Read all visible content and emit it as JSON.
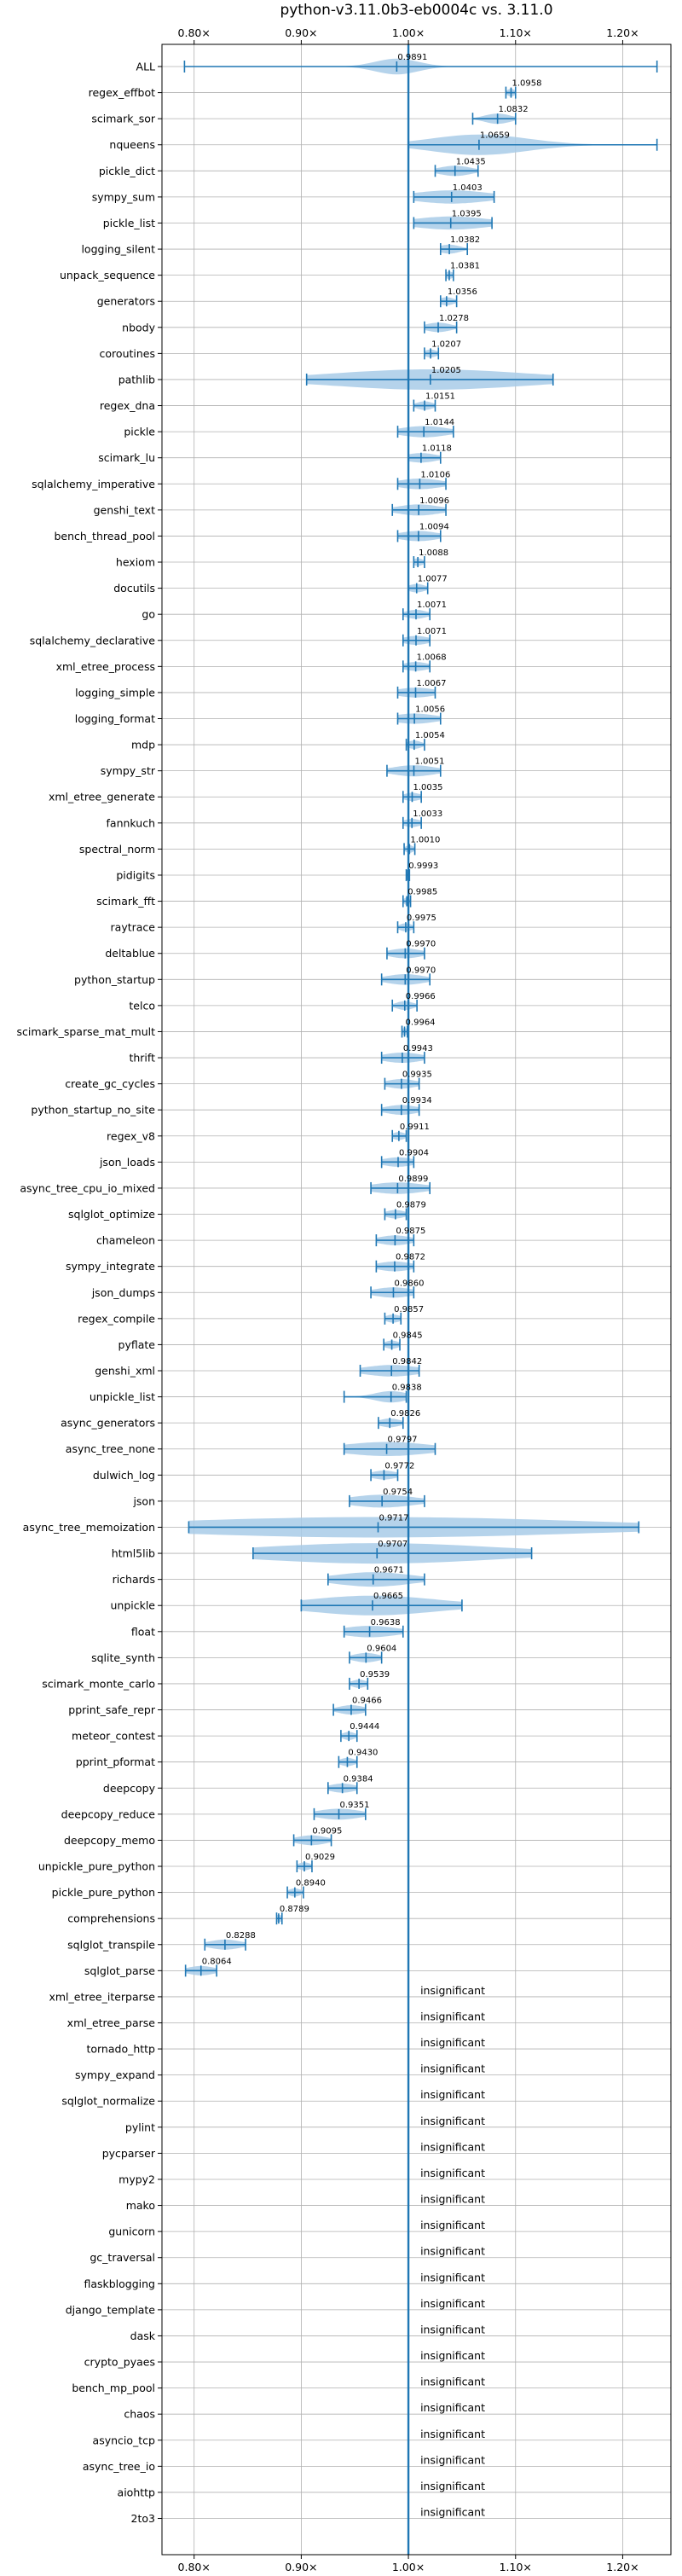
{
  "chart_data": {
    "type": "violin",
    "title": "python-v3.11.0b3-eb0004c vs. 3.11.0",
    "x_ticks": [
      {
        "value": 0.8,
        "label": "0.80×"
      },
      {
        "value": 0.9,
        "label": "0.90×"
      },
      {
        "value": 1.0,
        "label": "1.00×"
      },
      {
        "value": 1.1,
        "label": "1.10×"
      },
      {
        "value": 1.2,
        "label": "1.20×"
      }
    ],
    "xlim": [
      0.77,
      1.245
    ],
    "baseline": 1.0,
    "grid": true,
    "colors": {
      "violin": "#a8cbe8",
      "line": "#1f77b4",
      "grid": "#b0b0b0",
      "axis": "#000000"
    },
    "insignificant_label": "insignificant",
    "benchmarks": [
      {
        "name": "ALL",
        "mean": 0.9891,
        "min": 0.791,
        "max": 1.232,
        "spread": 0.02,
        "label": "0.9891"
      },
      {
        "name": "regex_effbot",
        "mean": 1.0958,
        "min": 1.091,
        "max": 1.1,
        "spread": 0.004,
        "label": "1.0958"
      },
      {
        "name": "scimark_sor",
        "mean": 1.0832,
        "min": 1.06,
        "max": 1.1,
        "spread": 0.012,
        "label": "1.0832"
      },
      {
        "name": "nqueens",
        "mean": 1.0659,
        "min": 1.0,
        "max": 1.232,
        "spread": 0.045,
        "label": "1.0659"
      },
      {
        "name": "pickle_dict",
        "mean": 1.0435,
        "min": 1.025,
        "max": 1.065,
        "spread": 0.015,
        "label": "1.0435"
      },
      {
        "name": "sympy_sum",
        "mean": 1.0403,
        "min": 1.005,
        "max": 1.08,
        "spread": 0.035,
        "label": "1.0403"
      },
      {
        "name": "pickle_list",
        "mean": 1.0395,
        "min": 1.005,
        "max": 1.078,
        "spread": 0.035,
        "label": "1.0395"
      },
      {
        "name": "logging_silent",
        "mean": 1.0382,
        "min": 1.03,
        "max": 1.055,
        "spread": 0.01,
        "label": "1.0382"
      },
      {
        "name": "unpack_sequence",
        "mean": 1.0381,
        "min": 1.035,
        "max": 1.042,
        "spread": 0.004,
        "label": "1.0381"
      },
      {
        "name": "generators",
        "mean": 1.0356,
        "min": 1.03,
        "max": 1.045,
        "spread": 0.007,
        "label": "1.0356"
      },
      {
        "name": "nbody",
        "mean": 1.0278,
        "min": 1.015,
        "max": 1.045,
        "spread": 0.012,
        "label": "1.0278"
      },
      {
        "name": "coroutines",
        "mean": 1.0207,
        "min": 1.015,
        "max": 1.028,
        "spread": 0.006,
        "label": "1.0207"
      },
      {
        "name": "pathlib",
        "mean": 1.0205,
        "min": 0.905,
        "max": 1.135,
        "spread": 0.09,
        "label": "1.0205"
      },
      {
        "name": "regex_dna",
        "mean": 1.0151,
        "min": 1.005,
        "max": 1.025,
        "spread": 0.008,
        "label": "1.0151"
      },
      {
        "name": "pickle",
        "mean": 1.0144,
        "min": 0.99,
        "max": 1.042,
        "spread": 0.022,
        "label": "1.0144"
      },
      {
        "name": "scimark_lu",
        "mean": 1.0118,
        "min": 1.0,
        "max": 1.03,
        "spread": 0.015,
        "label": "1.0118"
      },
      {
        "name": "sqlalchemy_imperative",
        "mean": 1.0106,
        "min": 0.99,
        "max": 1.035,
        "spread": 0.02,
        "label": "1.0106"
      },
      {
        "name": "genshi_text",
        "mean": 1.0096,
        "min": 0.985,
        "max": 1.035,
        "spread": 0.02,
        "label": "1.0096"
      },
      {
        "name": "bench_thread_pool",
        "mean": 1.0094,
        "min": 0.99,
        "max": 1.03,
        "spread": 0.018,
        "label": "1.0094"
      },
      {
        "name": "hexiom",
        "mean": 1.0088,
        "min": 1.005,
        "max": 1.015,
        "spread": 0.005,
        "label": "1.0088"
      },
      {
        "name": "docutils",
        "mean": 1.0077,
        "min": 1.0,
        "max": 1.018,
        "spread": 0.008,
        "label": "1.0077"
      },
      {
        "name": "go",
        "mean": 1.0071,
        "min": 0.995,
        "max": 1.02,
        "spread": 0.01,
        "label": "1.0071"
      },
      {
        "name": "sqlalchemy_declarative",
        "mean": 1.0071,
        "min": 0.995,
        "max": 1.02,
        "spread": 0.012,
        "label": "1.0071"
      },
      {
        "name": "xml_etree_process",
        "mean": 1.0068,
        "min": 0.995,
        "max": 1.02,
        "spread": 0.012,
        "label": "1.0068"
      },
      {
        "name": "logging_simple",
        "mean": 1.0067,
        "min": 0.99,
        "max": 1.025,
        "spread": 0.018,
        "label": "1.0067"
      },
      {
        "name": "logging_format",
        "mean": 1.0056,
        "min": 0.99,
        "max": 1.03,
        "spread": 0.02,
        "label": "1.0056"
      },
      {
        "name": "mdp",
        "mean": 1.0054,
        "min": 0.998,
        "max": 1.015,
        "spread": 0.007,
        "label": "1.0054"
      },
      {
        "name": "sympy_str",
        "mean": 1.0051,
        "min": 0.98,
        "max": 1.03,
        "spread": 0.02,
        "label": "1.0051"
      },
      {
        "name": "xml_etree_generate",
        "mean": 1.0035,
        "min": 0.995,
        "max": 1.012,
        "spread": 0.008,
        "label": "1.0035"
      },
      {
        "name": "fannkuch",
        "mean": 1.0033,
        "min": 0.995,
        "max": 1.012,
        "spread": 0.008,
        "label": "1.0033"
      },
      {
        "name": "spectral_norm",
        "mean": 1.001,
        "min": 0.996,
        "max": 1.006,
        "spread": 0.004,
        "label": "1.0010"
      },
      {
        "name": "pidigits",
        "mean": 0.9993,
        "min": 0.998,
        "max": 1.001,
        "spread": 0.002,
        "label": "0.9993"
      },
      {
        "name": "scimark_fft",
        "mean": 0.9985,
        "min": 0.995,
        "max": 1.002,
        "spread": 0.003,
        "label": "0.9985"
      },
      {
        "name": "raytrace",
        "mean": 0.9975,
        "min": 0.99,
        "max": 1.005,
        "spread": 0.006,
        "label": "0.9975"
      },
      {
        "name": "deltablue",
        "mean": 0.997,
        "min": 0.98,
        "max": 1.015,
        "spread": 0.015,
        "label": "0.9970"
      },
      {
        "name": "python_startup",
        "mean": 0.997,
        "min": 0.975,
        "max": 1.02,
        "spread": 0.018,
        "label": "0.9970"
      },
      {
        "name": "telco",
        "mean": 0.9966,
        "min": 0.985,
        "max": 1.008,
        "spread": 0.008,
        "label": "0.9966"
      },
      {
        "name": "scimark_sparse_mat_mult",
        "mean": 0.9964,
        "min": 0.994,
        "max": 0.999,
        "spread": 0.003,
        "label": "0.9964"
      },
      {
        "name": "thrift",
        "mean": 0.9943,
        "min": 0.975,
        "max": 1.015,
        "spread": 0.018,
        "label": "0.9943"
      },
      {
        "name": "create_gc_cycles",
        "mean": 0.9935,
        "min": 0.978,
        "max": 1.01,
        "spread": 0.014,
        "label": "0.9935"
      },
      {
        "name": "python_startup_no_site",
        "mean": 0.9934,
        "min": 0.975,
        "max": 1.01,
        "spread": 0.015,
        "label": "0.9934"
      },
      {
        "name": "regex_v8",
        "mean": 0.9911,
        "min": 0.985,
        "max": 0.998,
        "spread": 0.006,
        "label": "0.9911"
      },
      {
        "name": "json_loads",
        "mean": 0.9904,
        "min": 0.975,
        "max": 1.005,
        "spread": 0.015,
        "label": "0.9904"
      },
      {
        "name": "async_tree_cpu_io_mixed",
        "mean": 0.9899,
        "min": 0.965,
        "max": 1.02,
        "spread": 0.025,
        "label": "0.9899"
      },
      {
        "name": "sqlglot_optimize",
        "mean": 0.9879,
        "min": 0.978,
        "max": 0.998,
        "spread": 0.009,
        "label": "0.9879"
      },
      {
        "name": "chameleon",
        "mean": 0.9875,
        "min": 0.97,
        "max": 1.005,
        "spread": 0.015,
        "label": "0.9875"
      },
      {
        "name": "sympy_integrate",
        "mean": 0.9872,
        "min": 0.97,
        "max": 1.005,
        "spread": 0.016,
        "label": "0.9872"
      },
      {
        "name": "json_dumps",
        "mean": 0.986,
        "min": 0.965,
        "max": 1.005,
        "spread": 0.018,
        "label": "0.9860"
      },
      {
        "name": "regex_compile",
        "mean": 0.9857,
        "min": 0.978,
        "max": 0.993,
        "spread": 0.007,
        "label": "0.9857"
      },
      {
        "name": "pyflate",
        "mean": 0.9845,
        "min": 0.977,
        "max": 0.992,
        "spread": 0.007,
        "label": "0.9845"
      },
      {
        "name": "genshi_xml",
        "mean": 0.9842,
        "min": 0.955,
        "max": 1.01,
        "spread": 0.025,
        "label": "0.9842"
      },
      {
        "name": "unpickle_list",
        "mean": 0.9838,
        "min": 0.94,
        "max": 0.998,
        "spread": 0.015,
        "label": "0.9838"
      },
      {
        "name": "async_generators",
        "mean": 0.9826,
        "min": 0.972,
        "max": 0.995,
        "spread": 0.01,
        "label": "0.9826"
      },
      {
        "name": "async_tree_none",
        "mean": 0.9797,
        "min": 0.94,
        "max": 1.025,
        "spread": 0.04,
        "label": "0.9797"
      },
      {
        "name": "dulwich_log",
        "mean": 0.9772,
        "min": 0.965,
        "max": 0.99,
        "spread": 0.012,
        "label": "0.9772"
      },
      {
        "name": "json",
        "mean": 0.9754,
        "min": 0.945,
        "max": 1.015,
        "spread": 0.03,
        "label": "0.9754"
      },
      {
        "name": "async_tree_memoization",
        "mean": 0.9717,
        "min": 0.795,
        "max": 1.215,
        "spread": 0.19,
        "label": "0.9717"
      },
      {
        "name": "html5lib",
        "mean": 0.9707,
        "min": 0.855,
        "max": 1.115,
        "spread": 0.11,
        "label": "0.9707"
      },
      {
        "name": "richards",
        "mean": 0.9671,
        "min": 0.925,
        "max": 1.015,
        "spread": 0.035,
        "label": "0.9671"
      },
      {
        "name": "unpickle",
        "mean": 0.9665,
        "min": 0.9,
        "max": 1.05,
        "spread": 0.06,
        "label": "0.9665"
      },
      {
        "name": "float",
        "mean": 0.9638,
        "min": 0.94,
        "max": 0.995,
        "spread": 0.025,
        "label": "0.9638"
      },
      {
        "name": "sqlite_synth",
        "mean": 0.9604,
        "min": 0.945,
        "max": 0.975,
        "spread": 0.012,
        "label": "0.9604"
      },
      {
        "name": "scimark_monte_carlo",
        "mean": 0.9539,
        "min": 0.945,
        "max": 0.962,
        "spread": 0.007,
        "label": "0.9539"
      },
      {
        "name": "pprint_safe_repr",
        "mean": 0.9466,
        "min": 0.93,
        "max": 0.96,
        "spread": 0.012,
        "label": "0.9466"
      },
      {
        "name": "meteor_contest",
        "mean": 0.9444,
        "min": 0.937,
        "max": 0.952,
        "spread": 0.006,
        "label": "0.9444"
      },
      {
        "name": "pprint_pformat",
        "mean": 0.943,
        "min": 0.935,
        "max": 0.952,
        "spread": 0.007,
        "label": "0.9430"
      },
      {
        "name": "deepcopy",
        "mean": 0.9384,
        "min": 0.925,
        "max": 0.952,
        "spread": 0.012,
        "label": "0.9384"
      },
      {
        "name": "deepcopy_reduce",
        "mean": 0.9351,
        "min": 0.912,
        "max": 0.96,
        "spread": 0.02,
        "label": "0.9351"
      },
      {
        "name": "deepcopy_memo",
        "mean": 0.9095,
        "min": 0.893,
        "max": 0.928,
        "spread": 0.014,
        "label": "0.9095"
      },
      {
        "name": "unpickle_pure_python",
        "mean": 0.9029,
        "min": 0.896,
        "max": 0.91,
        "spread": 0.006,
        "label": "0.9029"
      },
      {
        "name": "pickle_pure_python",
        "mean": 0.894,
        "min": 0.887,
        "max": 0.902,
        "spread": 0.006,
        "label": "0.8940"
      },
      {
        "name": "comprehensions",
        "mean": 0.8789,
        "min": 0.877,
        "max": 0.882,
        "spread": 0.004,
        "label": "0.8789"
      },
      {
        "name": "sqlglot_transpile",
        "mean": 0.8288,
        "min": 0.81,
        "max": 0.848,
        "spread": 0.015,
        "label": "0.8288"
      },
      {
        "name": "sqlglot_parse",
        "mean": 0.8064,
        "min": 0.792,
        "max": 0.821,
        "spread": 0.013,
        "label": "0.8064"
      },
      {
        "name": "xml_etree_iterparse",
        "insignificant": true
      },
      {
        "name": "xml_etree_parse",
        "insignificant": true
      },
      {
        "name": "tornado_http",
        "insignificant": true
      },
      {
        "name": "sympy_expand",
        "insignificant": true
      },
      {
        "name": "sqlglot_normalize",
        "insignificant": true
      },
      {
        "name": "pylint",
        "insignificant": true
      },
      {
        "name": "pycparser",
        "insignificant": true
      },
      {
        "name": "mypy2",
        "insignificant": true
      },
      {
        "name": "mako",
        "insignificant": true
      },
      {
        "name": "gunicorn",
        "insignificant": true
      },
      {
        "name": "gc_traversal",
        "insignificant": true
      },
      {
        "name": "flaskblogging",
        "insignificant": true
      },
      {
        "name": "django_template",
        "insignificant": true
      },
      {
        "name": "dask",
        "insignificant": true
      },
      {
        "name": "crypto_pyaes",
        "insignificant": true
      },
      {
        "name": "bench_mp_pool",
        "insignificant": true
      },
      {
        "name": "chaos",
        "insignificant": true
      },
      {
        "name": "asyncio_tcp",
        "insignificant": true
      },
      {
        "name": "async_tree_io",
        "insignificant": true
      },
      {
        "name": "aiohttp",
        "insignificant": true
      },
      {
        "name": "2to3",
        "insignificant": true
      }
    ]
  }
}
